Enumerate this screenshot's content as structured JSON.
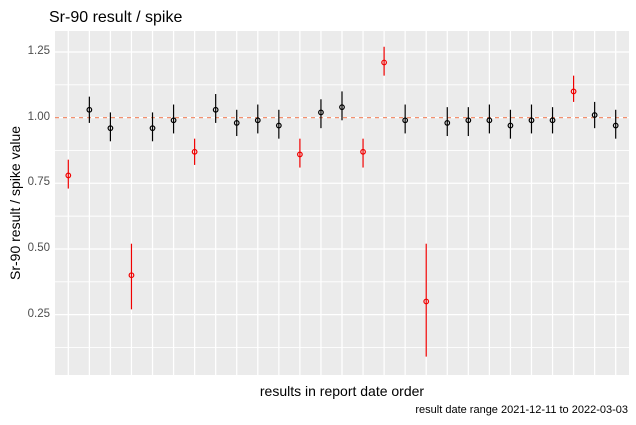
{
  "chart_data": {
    "type": "scatter",
    "subtype": "pointrange",
    "title": "Sr-90 result / spike",
    "xlabel": "results in report date order",
    "ylabel": "Sr-90 result / spike value",
    "caption": "result date range 2021-12-11 to 2022-03-03",
    "ylim": [
      0.02,
      1.33
    ],
    "y_ticks": [
      0.25,
      0.5,
      0.75,
      1.0,
      1.25
    ],
    "y_tick_labels": [
      "0.25",
      "0.50",
      "0.75",
      "1.00",
      "1.25"
    ],
    "y_minor_ticks": [
      0.125,
      0.375,
      0.625,
      0.875,
      1.125
    ],
    "x_tick_labels": [],
    "grid": true,
    "legend": "none",
    "reference_line": {
      "y": 1.0,
      "style": "dashed",
      "color": "#F2906F"
    },
    "colors": {
      "normal_point": "#000000",
      "flagged_point": "#F00000",
      "panel_background": "#EBEBEB",
      "gridline": "#FFFFFF",
      "tick_label": "#4D4D4D"
    },
    "n_points": 27,
    "points": [
      {
        "i": 1,
        "y": 0.78,
        "lo": 0.73,
        "hi": 0.84,
        "flagged": true
      },
      {
        "i": 2,
        "y": 1.03,
        "lo": 0.98,
        "hi": 1.08,
        "flagged": false
      },
      {
        "i": 3,
        "y": 0.96,
        "lo": 0.91,
        "hi": 1.02,
        "flagged": false
      },
      {
        "i": 4,
        "y": 0.4,
        "lo": 0.27,
        "hi": 0.52,
        "flagged": true
      },
      {
        "i": 5,
        "y": 0.96,
        "lo": 0.91,
        "hi": 1.02,
        "flagged": false
      },
      {
        "i": 6,
        "y": 0.99,
        "lo": 0.94,
        "hi": 1.05,
        "flagged": false
      },
      {
        "i": 7,
        "y": 0.87,
        "lo": 0.82,
        "hi": 0.92,
        "flagged": true
      },
      {
        "i": 8,
        "y": 1.03,
        "lo": 0.98,
        "hi": 1.09,
        "flagged": false
      },
      {
        "i": 9,
        "y": 0.98,
        "lo": 0.93,
        "hi": 1.03,
        "flagged": false
      },
      {
        "i": 10,
        "y": 0.99,
        "lo": 0.94,
        "hi": 1.05,
        "flagged": false
      },
      {
        "i": 11,
        "y": 0.97,
        "lo": 0.92,
        "hi": 1.03,
        "flagged": false
      },
      {
        "i": 12,
        "y": 0.86,
        "lo": 0.81,
        "hi": 0.92,
        "flagged": true
      },
      {
        "i": 13,
        "y": 1.02,
        "lo": 0.96,
        "hi": 1.07,
        "flagged": false
      },
      {
        "i": 14,
        "y": 1.04,
        "lo": 0.99,
        "hi": 1.1,
        "flagged": false
      },
      {
        "i": 15,
        "y": 0.87,
        "lo": 0.81,
        "hi": 0.92,
        "flagged": true
      },
      {
        "i": 16,
        "y": 1.21,
        "lo": 1.16,
        "hi": 1.27,
        "flagged": true
      },
      {
        "i": 17,
        "y": 0.99,
        "lo": 0.94,
        "hi": 1.05,
        "flagged": false
      },
      {
        "i": 18,
        "y": 0.3,
        "lo": 0.09,
        "hi": 0.52,
        "flagged": true
      },
      {
        "i": 19,
        "y": 0.98,
        "lo": 0.93,
        "hi": 1.04,
        "flagged": false
      },
      {
        "i": 20,
        "y": 0.99,
        "lo": 0.93,
        "hi": 1.04,
        "flagged": false
      },
      {
        "i": 21,
        "y": 0.99,
        "lo": 0.94,
        "hi": 1.05,
        "flagged": false
      },
      {
        "i": 22,
        "y": 0.97,
        "lo": 0.92,
        "hi": 1.03,
        "flagged": false
      },
      {
        "i": 23,
        "y": 0.99,
        "lo": 0.94,
        "hi": 1.05,
        "flagged": false
      },
      {
        "i": 24,
        "y": 0.99,
        "lo": 0.94,
        "hi": 1.04,
        "flagged": false
      },
      {
        "i": 25,
        "y": 1.1,
        "lo": 1.06,
        "hi": 1.16,
        "flagged": true
      },
      {
        "i": 26,
        "y": 1.01,
        "lo": 0.96,
        "hi": 1.06,
        "flagged": false
      },
      {
        "i": 27,
        "y": 0.97,
        "lo": 0.92,
        "hi": 1.03,
        "flagged": false
      }
    ]
  }
}
